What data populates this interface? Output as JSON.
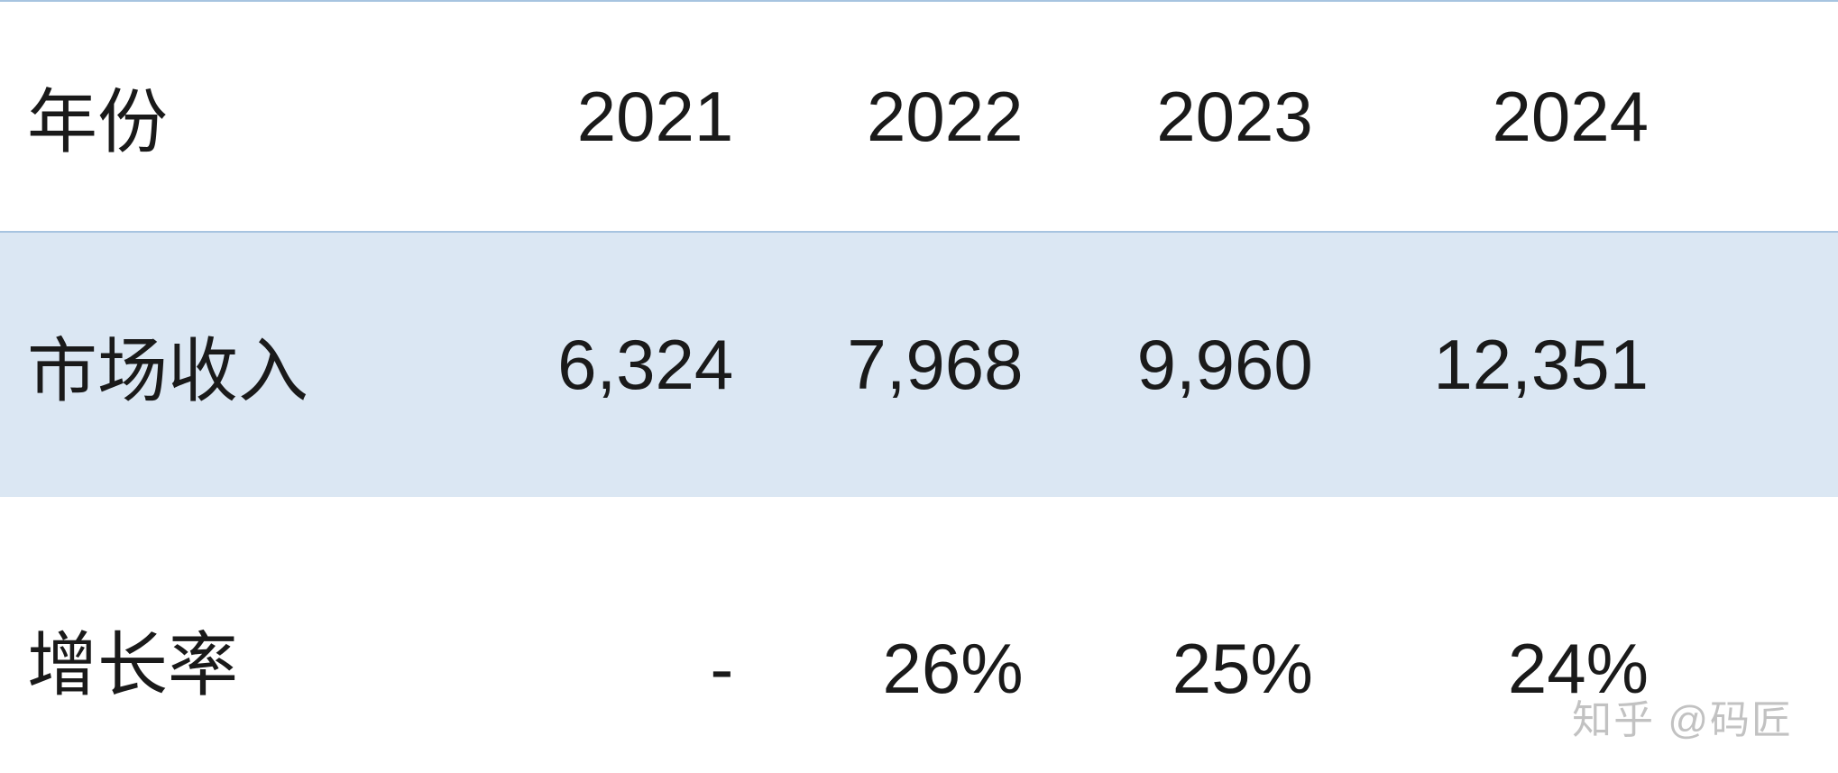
{
  "table": {
    "type": "table",
    "background_color": "#ffffff",
    "row_alt_color": "#dbe7f3",
    "border_color": "#a7c4e0",
    "text_color": "#1a1a1a",
    "header_fontsize": 78,
    "cell_fontsize": 78,
    "columns": [
      "年份",
      "2021",
      "2022",
      "2023",
      "2024"
    ],
    "rows": [
      [
        "市场收入",
        "6,324",
        "7,968",
        "9,960",
        "12,351"
      ],
      [
        "增长率",
        "-",
        "26%",
        "25%",
        "24%"
      ]
    ],
    "column_align": [
      "left",
      "right",
      "right",
      "right",
      "right"
    ]
  },
  "watermark": "知乎 @码匠"
}
